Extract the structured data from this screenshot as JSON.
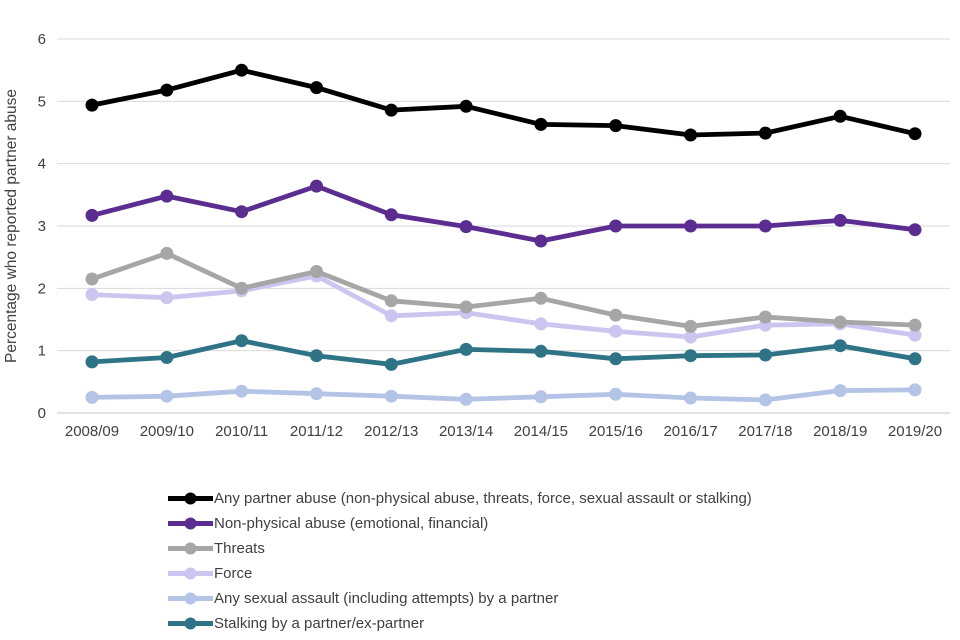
{
  "chart_data": {
    "type": "line",
    "title": "",
    "ylabel": "Percentage who reported partner abuse",
    "xlabel": "",
    "ylim": [
      0,
      6
    ],
    "yticks": [
      0,
      1,
      2,
      3,
      4,
      5,
      6
    ],
    "grid": true,
    "legend_position": "bottom-left",
    "categories": [
      "2008/09",
      "2009/10",
      "2010/11",
      "2011/12",
      "2012/13",
      "2013/14",
      "2014/15",
      "2015/16",
      "2016/17",
      "2017/18",
      "2018/19",
      "2019/20"
    ],
    "series": [
      {
        "name": "Any partner abuse (non-physical abuse, threats, force, sexual assault or stalking)",
        "color": "#000000",
        "values": [
          4.94,
          5.18,
          5.5,
          5.22,
          4.86,
          4.92,
          4.63,
          4.61,
          4.46,
          4.49,
          4.76,
          4.48
        ]
      },
      {
        "name": "Non-physical abuse (emotional, financial)",
        "color": "#5c2d91",
        "values": [
          3.17,
          3.48,
          3.23,
          3.64,
          3.18,
          2.99,
          2.76,
          3.0,
          3.0,
          3.0,
          3.09,
          2.94
        ]
      },
      {
        "name": "Threats",
        "color": "#a6a6a6",
        "values": [
          2.15,
          2.56,
          2.0,
          2.27,
          1.8,
          1.7,
          1.84,
          1.57,
          1.39,
          1.54,
          1.46,
          1.41
        ]
      },
      {
        "name": "Force",
        "color": "#ccc5f0",
        "values": [
          1.9,
          1.85,
          1.96,
          2.2,
          1.56,
          1.61,
          1.43,
          1.31,
          1.22,
          1.41,
          1.43,
          1.25
        ]
      },
      {
        "name": "Any sexual assault (including attempts) by a partner",
        "color": "#b4c4e6",
        "values": [
          0.25,
          0.27,
          0.35,
          0.31,
          0.27,
          0.22,
          0.26,
          0.3,
          0.24,
          0.21,
          0.36,
          0.37
        ]
      },
      {
        "name": "Stalking by a partner/ex-partner",
        "color": "#2e7386",
        "values": [
          0.82,
          0.89,
          1.16,
          0.92,
          0.78,
          1.02,
          0.99,
          0.87,
          0.92,
          0.93,
          1.08,
          0.87
        ]
      }
    ],
    "colors": {
      "grid_line": "#d9d9d9",
      "axis_line": "#c6c6c6",
      "axis_text": "#404040"
    }
  }
}
